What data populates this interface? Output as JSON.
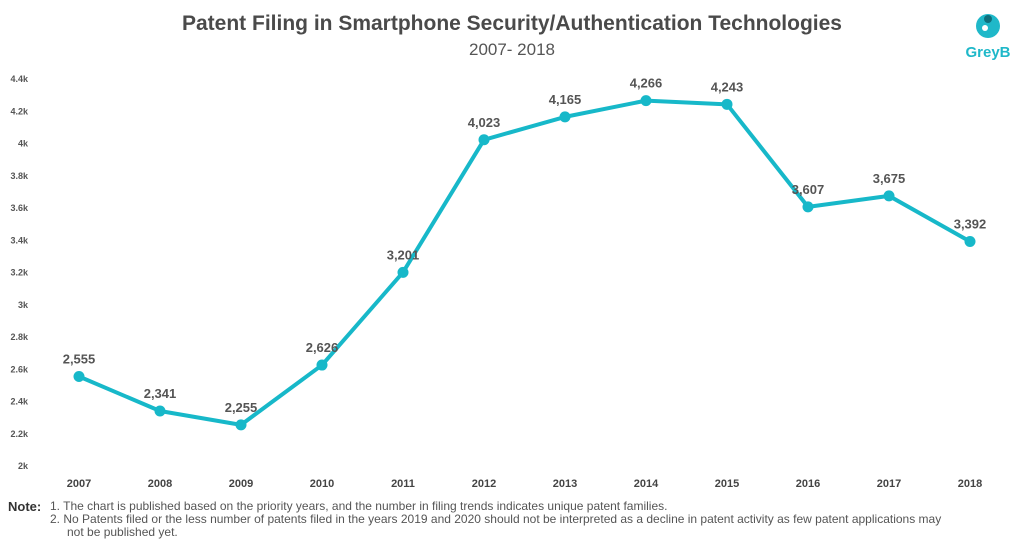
{
  "brand": {
    "name": "GreyB",
    "accent": "#1fb8c9"
  },
  "notes": {
    "label": "Note:",
    "items": [
      "1. The chart is published based on the priority years, and the number in filing trends indicates unique patent families.",
      "2. No Patents filed or the less number of patents filed in the years 2019 and 2020 should not be interpreted as a decline in patent activity as few patent applications may",
      "not be published yet."
    ]
  },
  "chart_data": {
    "type": "line",
    "title": "Patent Filing in Smartphone Security/Authentication Technologies",
    "subtitle": "2007- 2018",
    "xlabel": "",
    "ylabel": "",
    "categories": [
      "2007",
      "2008",
      "2009",
      "2010",
      "2011",
      "2012",
      "2013",
      "2014",
      "2015",
      "2016",
      "2017",
      "2018"
    ],
    "series": [
      {
        "values": [
          2555,
          2341,
          2255,
          2626,
          3201,
          4023,
          4165,
          4266,
          4243,
          3607,
          3675,
          3392
        ],
        "labels": [
          "2,555",
          "2,341",
          "2,255",
          "2,626",
          "3,201",
          "4,023",
          "4,165",
          "4,266",
          "4,243",
          "3,607",
          "3,675",
          "3,392"
        ],
        "color": "#17b8c9"
      }
    ],
    "ylim": [
      2000,
      4400
    ],
    "yticks": [
      2000,
      2200,
      2400,
      2600,
      2800,
      3000,
      3200,
      3400,
      3600,
      3800,
      4000,
      4200,
      4400
    ],
    "ytick_labels": [
      "2k",
      "2.2k",
      "2.4k",
      "2.6k",
      "2.8k",
      "3k",
      "3.2k",
      "3.4k",
      "3.6k",
      "3.8k",
      "4k",
      "4.2k",
      "4.4k"
    ],
    "grid": false,
    "legend": "none"
  }
}
